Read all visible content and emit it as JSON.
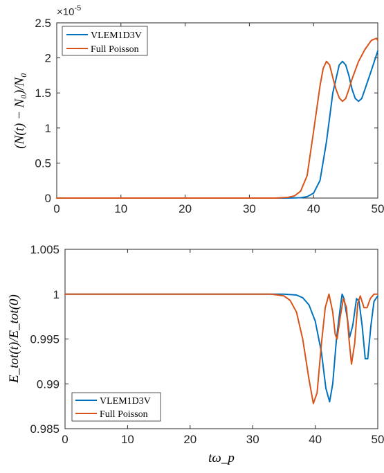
{
  "chart_data": [
    {
      "type": "line",
      "ylabel": "(N(t) − N₀)/N₀",
      "xlabel": "",
      "exponent_label": "×10",
      "exponent_power": "-5",
      "xlim": [
        0,
        50
      ],
      "ylim": [
        0,
        2.5
      ],
      "x_ticks": [
        "0",
        "10",
        "20",
        "30",
        "40",
        "50"
      ],
      "y_ticks": [
        "0",
        "0.5",
        "1",
        "1.5",
        "2",
        "2.5"
      ],
      "grid": false,
      "legend_position": "top-left",
      "series": [
        {
          "name": "VLEM1D3V",
          "color": "#0072BD",
          "points": [
            [
              0,
              0
            ],
            [
              36,
              0
            ],
            [
              38,
              0.005
            ],
            [
              39,
              0.02
            ],
            [
              40,
              0.07
            ],
            [
              41,
              0.25
            ],
            [
              42,
              0.8
            ],
            [
              43,
              1.5
            ],
            [
              44,
              1.9
            ],
            [
              44.5,
              1.95
            ],
            [
              45,
              1.9
            ],
            [
              45.5,
              1.75
            ],
            [
              46,
              1.55
            ],
            [
              46.5,
              1.42
            ],
            [
              47,
              1.38
            ],
            [
              47.5,
              1.42
            ],
            [
              48,
              1.55
            ],
            [
              49,
              1.82
            ],
            [
              50,
              2.1
            ]
          ]
        },
        {
          "name": "Full Poisson",
          "color": "#D95319",
          "points": [
            [
              0,
              0
            ],
            [
              34,
              0
            ],
            [
              36,
              0.01
            ],
            [
              37,
              0.03
            ],
            [
              38,
              0.1
            ],
            [
              39,
              0.32
            ],
            [
              40,
              0.95
            ],
            [
              41,
              1.6
            ],
            [
              41.5,
              1.85
            ],
            [
              42,
              1.95
            ],
            [
              42.5,
              1.9
            ],
            [
              43,
              1.72
            ],
            [
              43.5,
              1.55
            ],
            [
              44,
              1.43
            ],
            [
              44.5,
              1.38
            ],
            [
              45,
              1.42
            ],
            [
              45.5,
              1.55
            ],
            [
              46,
              1.7
            ],
            [
              47,
              1.95
            ],
            [
              48,
              2.12
            ],
            [
              49,
              2.25
            ],
            [
              49.8,
              2.28
            ],
            [
              50,
              2.25
            ]
          ]
        }
      ]
    },
    {
      "type": "line",
      "ylabel": "E_tot(t)/E_tot(0)",
      "xlabel": "tω_p",
      "xlim": [
        0,
        50
      ],
      "ylim": [
        0.985,
        1.005
      ],
      "x_ticks": [
        "0",
        "10",
        "20",
        "30",
        "40",
        "50"
      ],
      "y_ticks": [
        "0.985",
        "0.99",
        "0.995",
        "1",
        "1.005"
      ],
      "grid": false,
      "legend_position": "bottom-left",
      "series": [
        {
          "name": "VLEM1D3V",
          "color": "#0072BD",
          "points": [
            [
              0,
              1.0
            ],
            [
              35,
              1.0
            ],
            [
              37,
              0.9999
            ],
            [
              38,
              0.9996
            ],
            [
              39,
              0.9988
            ],
            [
              40,
              0.997
            ],
            [
              41,
              0.9935
            ],
            [
              41.7,
              0.9895
            ],
            [
              42.3,
              0.988
            ],
            [
              42.8,
              0.99
            ],
            [
              43.4,
              0.995
            ],
            [
              44,
              0.9985
            ],
            [
              44.3,
              1.0
            ],
            [
              44.6,
              0.9995
            ],
            [
              45.2,
              0.997
            ],
            [
              45.5,
              0.9952
            ],
            [
              46,
              0.9965
            ],
            [
              46.6,
              0.9995
            ],
            [
              47,
              0.9992
            ],
            [
              47.5,
              0.9965
            ],
            [
              48,
              0.9928
            ],
            [
              48.4,
              0.9928
            ],
            [
              48.9,
              0.9965
            ],
            [
              49.4,
              0.9992
            ],
            [
              50,
              0.9998
            ]
          ]
        },
        {
          "name": "Full Poisson",
          "color": "#D95319",
          "points": [
            [
              0,
              1.0
            ],
            [
              33,
              1.0
            ],
            [
              35,
              0.9998
            ],
            [
              36,
              0.9993
            ],
            [
              37,
              0.998
            ],
            [
              38,
              0.995
            ],
            [
              39,
              0.9905
            ],
            [
              39.7,
              0.9878
            ],
            [
              40.3,
              0.989
            ],
            [
              41,
              0.9945
            ],
            [
              41.6,
              0.9985
            ],
            [
              42.2,
              1.0
            ],
            [
              42.8,
              0.998
            ],
            [
              43.2,
              0.9955
            ],
            [
              43.5,
              0.995
            ],
            [
              44,
              0.9975
            ],
            [
              44.5,
              0.9995
            ],
            [
              45,
              0.9985
            ],
            [
              45.4,
              0.995
            ],
            [
              45.8,
              0.9922
            ],
            [
              46.3,
              0.9945
            ],
            [
              46.8,
              0.999
            ],
            [
              47.2,
              0.9998
            ],
            [
              47.8,
              0.9985
            ],
            [
              48.3,
              0.9985
            ],
            [
              48.8,
              0.9995
            ],
            [
              49.4,
              1.0
            ],
            [
              50,
              1.0
            ]
          ]
        }
      ]
    }
  ]
}
